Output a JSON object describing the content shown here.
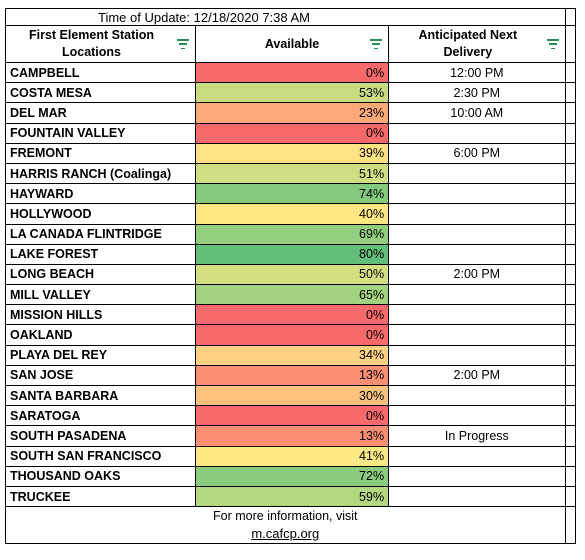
{
  "update": {
    "label": "Time of Update:",
    "value": "12/18/2020 7:38 AM"
  },
  "headers": {
    "locations": "First Element Station Locations",
    "available": "Available",
    "delivery": "Anticipated Next Delivery"
  },
  "rows": [
    {
      "name": "CAMPBELL",
      "available": "0%",
      "pct": 0,
      "delivery": "12:00 PM",
      "color": "#f8696b"
    },
    {
      "name": "COSTA MESA",
      "available": "53%",
      "pct": 53,
      "delivery": "2:30 PM",
      "color": "#c9dc81"
    },
    {
      "name": "DEL MAR",
      "available": "23%",
      "pct": 23,
      "delivery": "10:00 AM",
      "color": "#fbaa77"
    },
    {
      "name": "FOUNTAIN VALLEY",
      "available": "0%",
      "pct": 0,
      "delivery": "",
      "color": "#f8696b"
    },
    {
      "name": "FREMONT",
      "available": "39%",
      "pct": 39,
      "delivery": "6:00 PM",
      "color": "#ffe283"
    },
    {
      "name": "HARRIS RANCH (Coalinga)",
      "available": "51%",
      "pct": 51,
      "delivery": "",
      "color": "#d0dd82"
    },
    {
      "name": "HAYWARD",
      "available": "74%",
      "pct": 74,
      "delivery": "",
      "color": "#83c97e"
    },
    {
      "name": "HOLLYWOOD",
      "available": "40%",
      "pct": 40,
      "delivery": "",
      "color": "#fee683"
    },
    {
      "name": "LA CANADA FLINTRIDGE",
      "available": "69%",
      "pct": 69,
      "delivery": "",
      "color": "#93ce7f"
    },
    {
      "name": "LAKE FOREST",
      "available": "80%",
      "pct": 80,
      "delivery": "",
      "color": "#63be7b"
    },
    {
      "name": "LONG BEACH",
      "available": "50%",
      "pct": 50,
      "delivery": "2:00 PM",
      "color": "#d4df82"
    },
    {
      "name": "MILL VALLEY",
      "available": "65%",
      "pct": 65,
      "delivery": "",
      "color": "#a2d27f"
    },
    {
      "name": "MISSION HILLS",
      "available": "0%",
      "pct": 0,
      "delivery": "",
      "color": "#f8696b"
    },
    {
      "name": "OAKLAND",
      "available": "0%",
      "pct": 0,
      "delivery": "",
      "color": "#f8696b"
    },
    {
      "name": "PLAYA DEL REY",
      "available": "34%",
      "pct": 34,
      "delivery": "",
      "color": "#fed280"
    },
    {
      "name": "SAN JOSE",
      "available": "13%",
      "pct": 13,
      "delivery": "2:00 PM",
      "color": "#fa8e72"
    },
    {
      "name": "SANTA BARBARA",
      "available": "30%",
      "pct": 30,
      "delivery": "",
      "color": "#fdc37d"
    },
    {
      "name": "SARATOGA",
      "available": "0%",
      "pct": 0,
      "delivery": "",
      "color": "#f8696b"
    },
    {
      "name": "SOUTH PASADENA",
      "available": "13%",
      "pct": 13,
      "delivery": "In Progress",
      "color": "#fa8e72"
    },
    {
      "name": "SOUTH SAN FRANCISCO",
      "available": "41%",
      "pct": 41,
      "delivery": "",
      "color": "#fde983"
    },
    {
      "name": "THOUSAND OAKS",
      "available": "72%",
      "pct": 72,
      "delivery": "",
      "color": "#8acb7e"
    },
    {
      "name": "TRUCKEE",
      "available": "59%",
      "pct": 59,
      "delivery": "",
      "color": "#b4d881"
    }
  ],
  "footer": {
    "text": "For more information, visit",
    "link": "m.cafcp.org"
  },
  "icons": {
    "filter": "filter-icon"
  }
}
